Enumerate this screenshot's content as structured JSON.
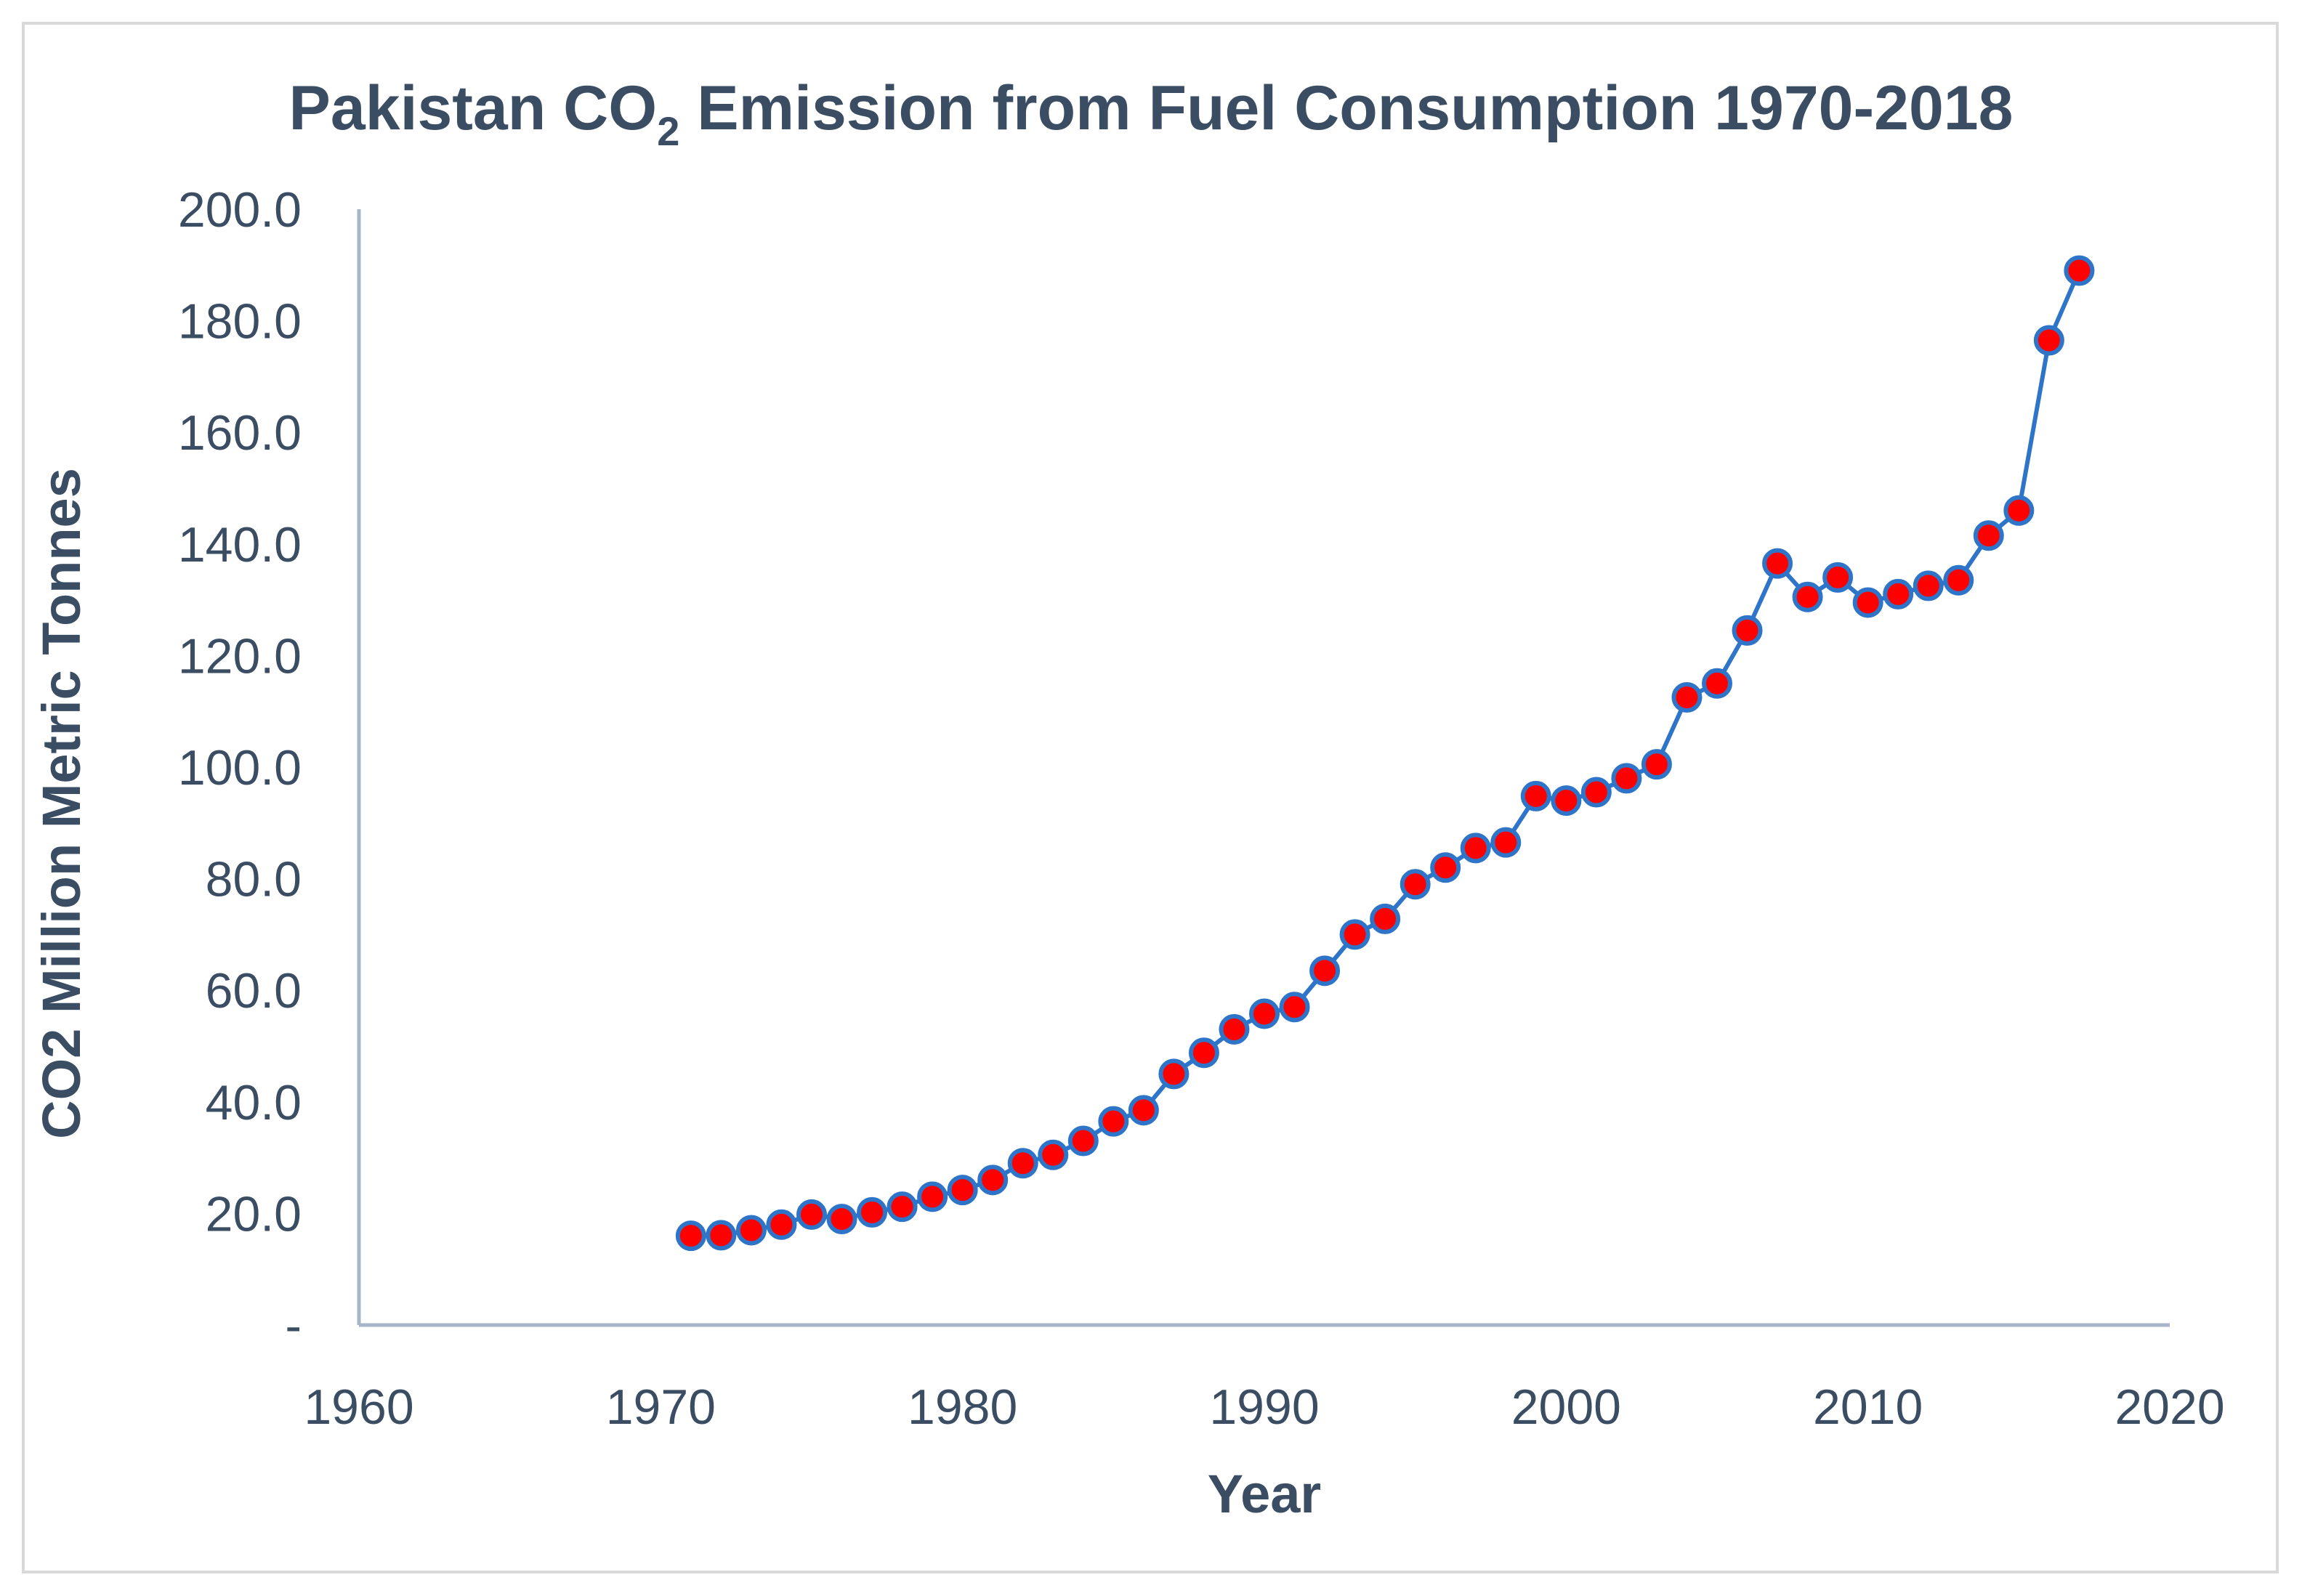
{
  "chart_data": {
    "type": "line",
    "title_main": "Pakistan CO",
    "title_sub": "2",
    "title_rest": " Emission from Fuel Consumption 1970-2018",
    "xlabel": "Year",
    "ylabel": "CO2 Million Metric Tonnes",
    "xlim": [
      1960,
      2020
    ],
    "ylim": [
      0,
      200
    ],
    "x_ticks": [
      1960,
      1970,
      1980,
      1990,
      2000,
      2010,
      2020
    ],
    "x_tick_labels": [
      "1960",
      "1970",
      "1980",
      "1990",
      "2000",
      "2010",
      "2020"
    ],
    "y_ticks": [
      0,
      20,
      40,
      60,
      80,
      100,
      120,
      140,
      160,
      180,
      200
    ],
    "y_tick_labels": [
      "-",
      "20.0",
      "40.0",
      "60.0",
      "80.0",
      "100.0",
      "120.0",
      "140.0",
      "160.0",
      "180.0",
      "200.0"
    ],
    "line_color": "#2e75c9",
    "marker_color": "#ff0000",
    "marker_edge_color": "#2e75c9",
    "axis_color": "#a6b6c8",
    "text_color": "#3b4d63",
    "series": [
      {
        "name": "CO2 Emission",
        "x": [
          1971,
          1972,
          1973,
          1974,
          1975,
          1976,
          1977,
          1978,
          1979,
          1980,
          1981,
          1982,
          1983,
          1984,
          1985,
          1986,
          1987,
          1988,
          1989,
          1990,
          1991,
          1992,
          1993,
          1994,
          1995,
          1996,
          1997,
          1998,
          1999,
          2000,
          2001,
          2002,
          2003,
          2004,
          2005,
          2006,
          2007,
          2008,
          2009,
          2010,
          2011,
          2012,
          2013,
          2014,
          2015,
          2016,
          2017
        ],
        "values": [
          16.0,
          16.1,
          17.0,
          18.0,
          19.8,
          19.0,
          20.2,
          21.2,
          23.0,
          24.2,
          26.0,
          29.0,
          30.5,
          33.0,
          36.5,
          38.5,
          45.0,
          48.8,
          53.0,
          55.8,
          57.0,
          63.5,
          70.0,
          72.8,
          79.0,
          82.0,
          85.5,
          86.5,
          94.8,
          94.0,
          95.5,
          98.0,
          100.5,
          112.5,
          115.0,
          124.5,
          136.5,
          130.5,
          134.0,
          129.5,
          131.0,
          132.5,
          133.5,
          141.5,
          146.0,
          176.5,
          189.0
        ]
      }
    ]
  }
}
